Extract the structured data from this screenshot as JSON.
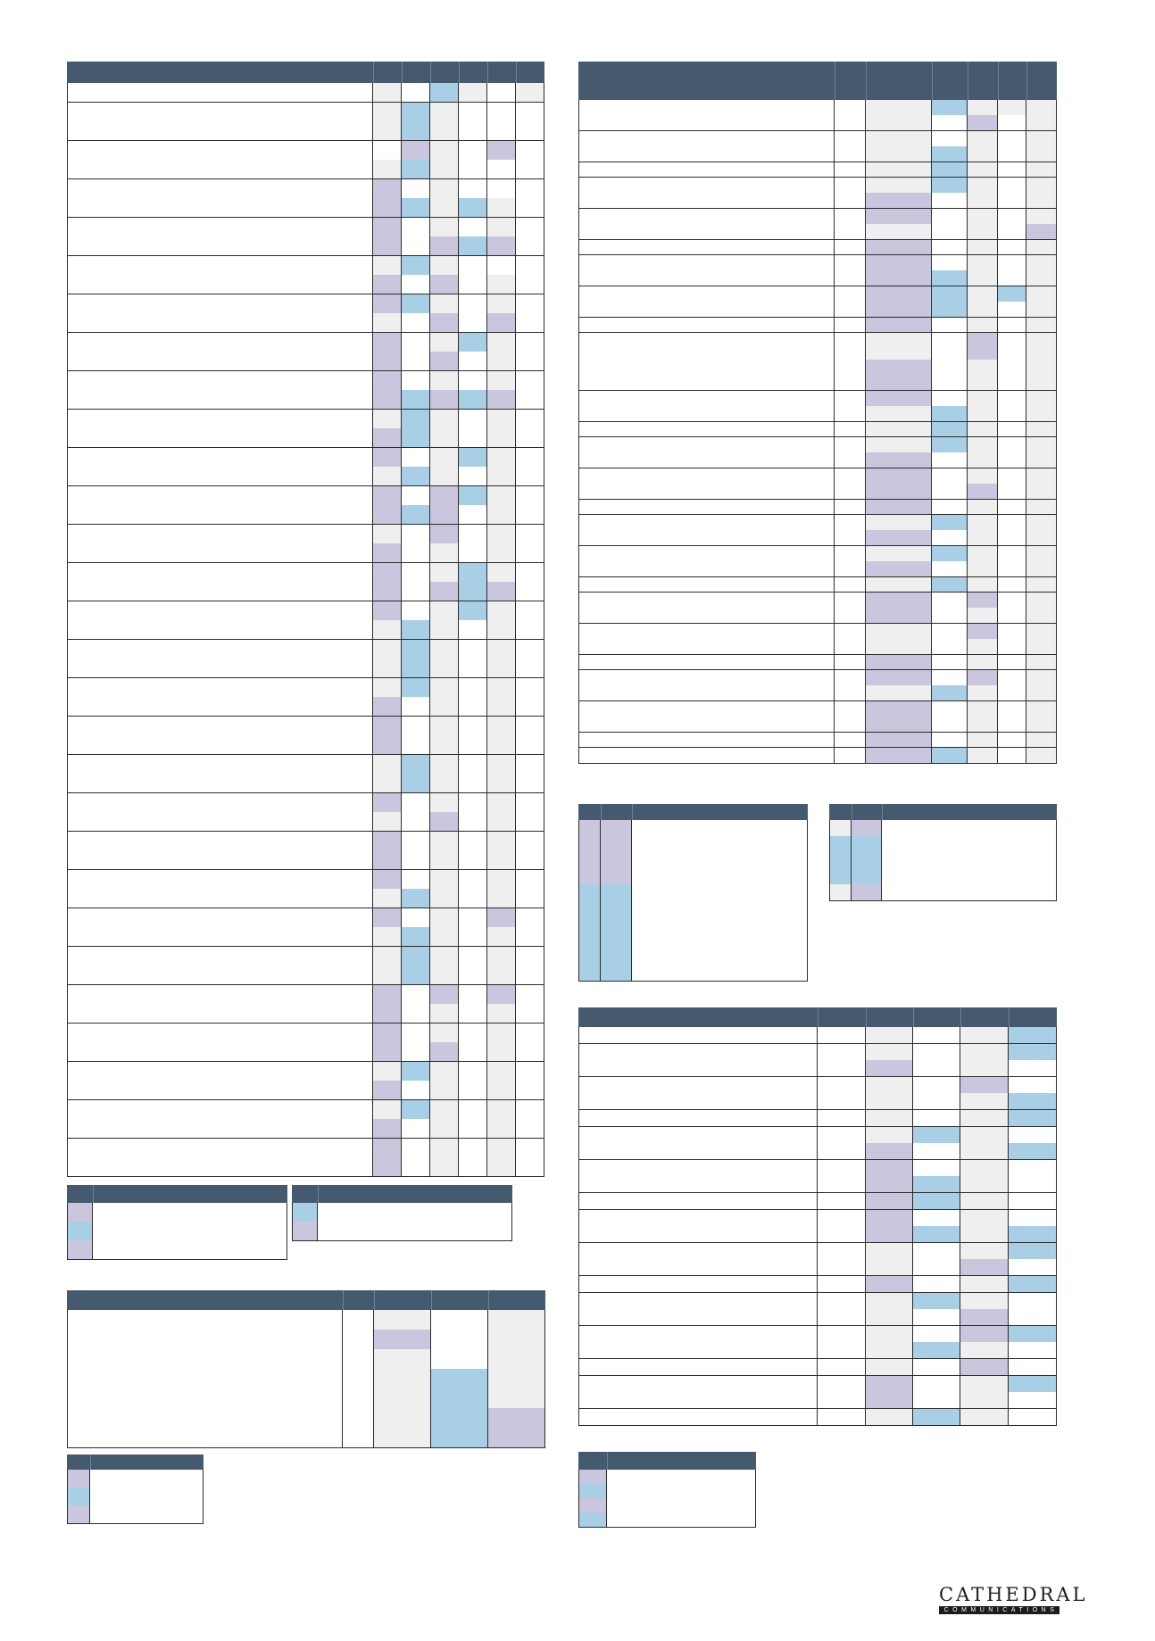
{
  "palette": {
    "header": "#455a6f",
    "white": "#ffffff",
    "grey": "#efefef",
    "purple": "#cac6de",
    "blue": "#a8cfe6",
    "line": "#2b2b2b"
  },
  "tables": [
    {
      "id": "table-main-left",
      "rows": [
        "wgwbgwg",
        "wgbgww",
        "wgbgww",
        "wwpgwp",
        "wgbgww",
        "wpwgww",
        "wpbgbg",
        "wpwgwg",
        "wpwpbp",
        "wgbgww",
        "wpwpwg",
        "wpbgwg",
        "wgwpwp",
        "wpwgbg",
        "wpwpwg",
        "wpwgwg",
        "wpbpbp",
        "wgbgwg",
        "wpbgwg",
        "wpwgbg",
        "wgbgwg",
        "wpwpbg",
        "wpbpwg",
        "wgwpwg",
        "wpwgwg",
        "wpwgbg",
        "wpwpbp",
        "wpwgbg",
        "wgbgwg",
        "wgbgwg",
        "wgbgwg",
        "wgbgwg",
        "wpwgwg",
        "wpwgwg",
        "wpwgwg",
        "wgbgwg",
        "wgbgwg",
        "wpwgwg",
        "wgwpwg",
        "wpwgwg",
        "wpwgwg",
        "wpwgwg",
        "wgbgwg",
        "wpwgwp",
        "wgbgwg",
        "wgbgwg",
        "wgbgwg",
        "wpwpwp",
        "wpwgwg",
        "wpwgwg",
        "wpwpwg",
        "wgbgwg",
        "wpwgwg",
        "wgbgwg",
        "wpwgwg",
        "wpwgwg",
        "wpwgwg"
      ]
    },
    {
      "id": "table-main-right",
      "rows": [
        "wwgbggg",
        "wwgwpwg",
        "wwgwgwg",
        "wwgbgwg",
        "wwgbgwg",
        "wwgbgwg",
        "wwpwgwg",
        "wwpwgwg",
        "wwgwgwp",
        "wwpwgwg",
        "wwpwgwg",
        "wwpbgwg",
        "wwpbgbg",
        "wwpbgwg",
        "wwpwgwg",
        "wwgwpwg",
        "wwpwgwg",
        "wwpwgwg",
        "wwpwgwg",
        "wwgbgwg",
        "wwgbgwg",
        "wwgbgwg",
        "wwpwgwg",
        "wwpwgwg",
        "wwpwpwg",
        "wwpwgwg",
        "wwgbgwg",
        "wwpwgwg",
        "wwgbgwg",
        "wwpwgwg",
        "wwgbgwg",
        "wwpwpwg",
        "wwpwgwg",
        "wwgwpwg",
        "wwgwgwg",
        "wwpwgwg",
        "wwpwpwg",
        "wwgbgwg",
        "wwpwgwg",
        "wwpwgwg",
        "wwpwgwg",
        "wwpbgwg"
      ]
    },
    {
      "id": "legend-a-left",
      "rows": [
        "pw",
        "bw",
        "pw"
      ]
    },
    {
      "id": "legend-b-left",
      "rows": [
        "bw",
        "pw"
      ]
    },
    {
      "id": "table-lower-left",
      "rows": [
        "wwgwg",
        "wwpwg",
        "wwgwg",
        "wwgbg",
        "wwgbg",
        "wwgbp",
        "wwgbp"
      ]
    },
    {
      "id": "legend-c-left",
      "rows": [
        "pw",
        "bw",
        "pw"
      ]
    },
    {
      "id": "legend-d-right",
      "rows": [
        "ppw",
        "ppw",
        "ppw",
        "ppw",
        "bbw",
        "bbw",
        "bbw",
        "bbw",
        "bbw",
        "bbw"
      ]
    },
    {
      "id": "legend-e-right",
      "rows": [
        "gpw",
        "bbw",
        "bbw",
        "bbw",
        "gpw"
      ]
    },
    {
      "id": "table-lower-right",
      "rows": [
        "wwgwgb",
        "wwgwgb",
        "wwpwgw",
        "wwgwpw",
        "wwgwgb",
        "wwgwgb",
        "wwgbgw",
        "wwpwgb",
        "wwpwgw",
        "wwpbgw",
        "wwpbgw",
        "wwpwgw",
        "wwpbgb",
        "wwgwgb",
        "wwgwpw",
        "wwpwgb",
        "wwgbgw",
        "wwgwpw",
        "wwgwpb",
        "wwgbgw",
        "wwgwpw",
        "wwpwgb",
        "wwpwgw",
        "wwgbgw"
      ]
    },
    {
      "id": "legend-f-right",
      "rows": [
        "pw",
        "bw",
        "pw",
        "bw"
      ]
    }
  ],
  "logo": {
    "name": "CATHEDRAL",
    "tagline": "COMMUNICATIONS"
  }
}
